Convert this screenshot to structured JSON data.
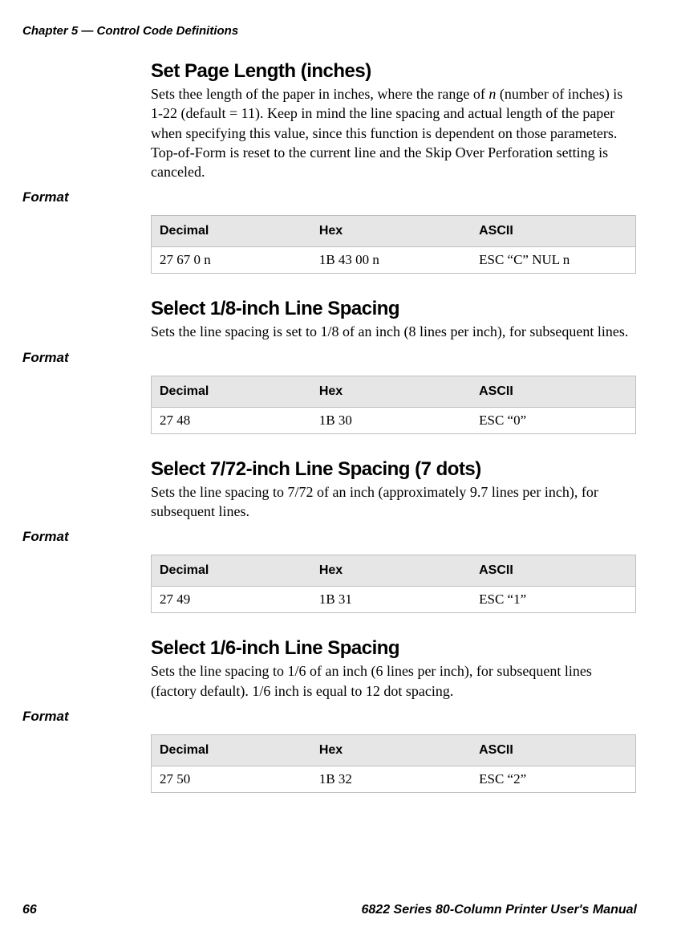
{
  "chapter_header": "Chapter 5 — Control Code Definitions",
  "sections": [
    {
      "title": "Set Page Length (inches)",
      "body_html": "Sets thee length of the paper in inches, where the range of <span class='italic-n'>n</span> (number of inches) is 1-22 (default = 11). Keep in mind the line spacing and actual length of the paper when specifying this value, since this function is dependent on those parameters. Top-of-Form is reset to the current line and the Skip Over Perforation setting is canceled.",
      "format_label": "Format",
      "table": {
        "headers": [
          "Decimal",
          "Hex",
          "ASCII"
        ],
        "row": [
          "27 67 0 n",
          "1B 43 00 n",
          "ESC “C” NUL n"
        ]
      }
    },
    {
      "title": "Select 1/8-inch Line Spacing",
      "body_html": "Sets the line spacing is set to 1/8 of an inch (8 lines per inch), for subsequent lines.",
      "format_label": "Format",
      "table": {
        "headers": [
          "Decimal",
          "Hex",
          "ASCII"
        ],
        "row": [
          "27 48",
          "1B 30",
          "ESC “0”"
        ]
      }
    },
    {
      "title": "Select 7/72-inch Line Spacing (7 dots)",
      "body_html": "Sets the line spacing to 7/72 of an inch (approximately 9.7 lines per inch), for subsequent lines.",
      "format_label": "Format",
      "table": {
        "headers": [
          "Decimal",
          "Hex",
          "ASCII"
        ],
        "row": [
          "27 49",
          "1B 31",
          "ESC “1”"
        ]
      }
    },
    {
      "title": "Select 1/6-inch Line Spacing",
      "body_html": "Sets the line spacing to 1/6 of an inch (6 lines per inch), for subsequent lines (factory default). 1/6 inch is equal to 12 dot spacing.",
      "format_label": "Format",
      "table": {
        "headers": [
          "Decimal",
          "Hex",
          "ASCII"
        ],
        "row": [
          "27 50",
          "1B 32",
          "ESC “2”"
        ]
      }
    }
  ],
  "footer": {
    "page_number": "66",
    "manual_title": "6822 Series 80-Column Printer User's Manual"
  }
}
